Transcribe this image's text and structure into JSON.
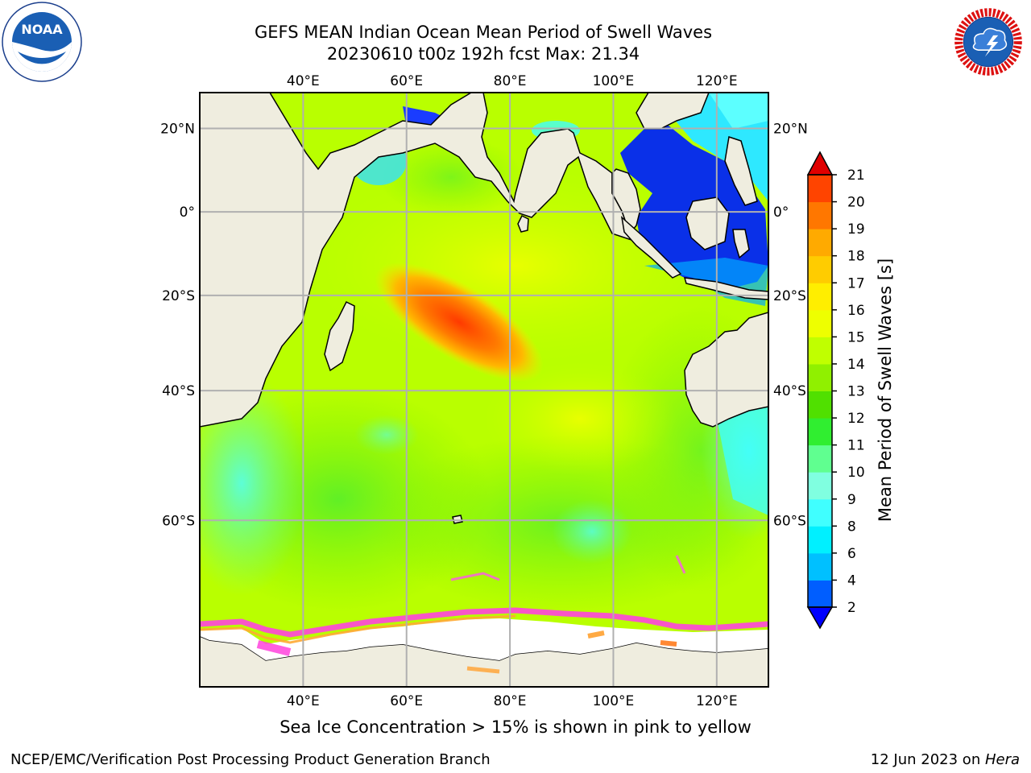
{
  "title": {
    "line1": "GEFS MEAN Indian Ocean Mean Period of Swell Waves",
    "line2": "20230610 t00z 192h fcst   Max: 21.34"
  },
  "caption": "Sea Ice Concentration > 15% is shown in pink to yellow",
  "footer": {
    "left": "NCEP/EMC/Verification Post Processing Product Generation Branch",
    "right_date": "12 Jun 2023 on ",
    "right_host": "Hera"
  },
  "logos": {
    "left": "noaa-logo",
    "right": "nws-logo"
  },
  "map": {
    "lon_range": [
      20,
      130
    ],
    "lat_range": [
      -75,
      28
    ],
    "lon_ticks": [
      {
        "value": 40,
        "label": "40°E"
      },
      {
        "value": 60,
        "label": "60°E"
      },
      {
        "value": 80,
        "label": "80°E"
      },
      {
        "value": 100,
        "label": "100°E"
      },
      {
        "value": 120,
        "label": "120°E"
      }
    ],
    "lat_ticks": [
      {
        "value": 20,
        "label": "20°N"
      },
      {
        "value": 0,
        "label": "0°"
      },
      {
        "value": -20,
        "label": "20°S"
      },
      {
        "value": -40,
        "label": "40°S"
      },
      {
        "value": -60,
        "label": "60°S"
      }
    ],
    "land_color": "#efeddf",
    "ocean_base_color": "#b9ff00",
    "ice_shelf_color": "#ffffff",
    "grid_color": "#b0b0b0"
  },
  "colorbar": {
    "title": "Mean Period of Swell Waves [s]",
    "levels": [
      {
        "label": "2",
        "color": "#005eff"
      },
      {
        "label": "4",
        "color": "#00c0ff"
      },
      {
        "label": "6",
        "color": "#00f0ff"
      },
      {
        "label": "8",
        "color": "#40ffff"
      },
      {
        "label": "9",
        "color": "#80ffe0"
      },
      {
        "label": "10",
        "color": "#60ff90"
      },
      {
        "label": "11",
        "color": "#30ee30"
      },
      {
        "label": "12",
        "color": "#50e000"
      },
      {
        "label": "13",
        "color": "#90f000"
      },
      {
        "label": "14",
        "color": "#c0ff00"
      },
      {
        "label": "15",
        "color": "#eeff00"
      },
      {
        "label": "16",
        "color": "#ffee00"
      },
      {
        "label": "17",
        "color": "#ffcc00"
      },
      {
        "label": "18",
        "color": "#ffaa00"
      },
      {
        "label": "19",
        "color": "#ff7700"
      },
      {
        "label": "20",
        "color": "#ff4400"
      },
      {
        "label": "21",
        "color": "#ff0000"
      }
    ],
    "under_color": "#0000ff",
    "over_color": "#e00000"
  }
}
